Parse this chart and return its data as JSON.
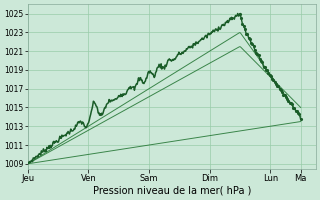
{
  "title": "",
  "xlabel": "Pression niveau de la mer( hPa )",
  "ylabel": "",
  "bg_color": "#cce8d8",
  "plot_bg_color": "#cce8d8",
  "grid_color": "#99ccaa",
  "line_color_main": "#1a5c28",
  "line_color_thin": "#2a7a3a",
  "ylim": [
    1008.5,
    1026.0
  ],
  "yticks": [
    1009,
    1011,
    1013,
    1015,
    1017,
    1019,
    1021,
    1023,
    1025
  ],
  "x_day_labels": [
    "Jeu",
    "Ven",
    "Sam",
    "Dim",
    "Lun",
    "Ma"
  ],
  "x_day_positions": [
    0,
    48,
    96,
    144,
    192,
    216
  ],
  "xlim": [
    0,
    228
  ],
  "figsize": [
    3.2,
    2.0
  ],
  "dpi": 100
}
